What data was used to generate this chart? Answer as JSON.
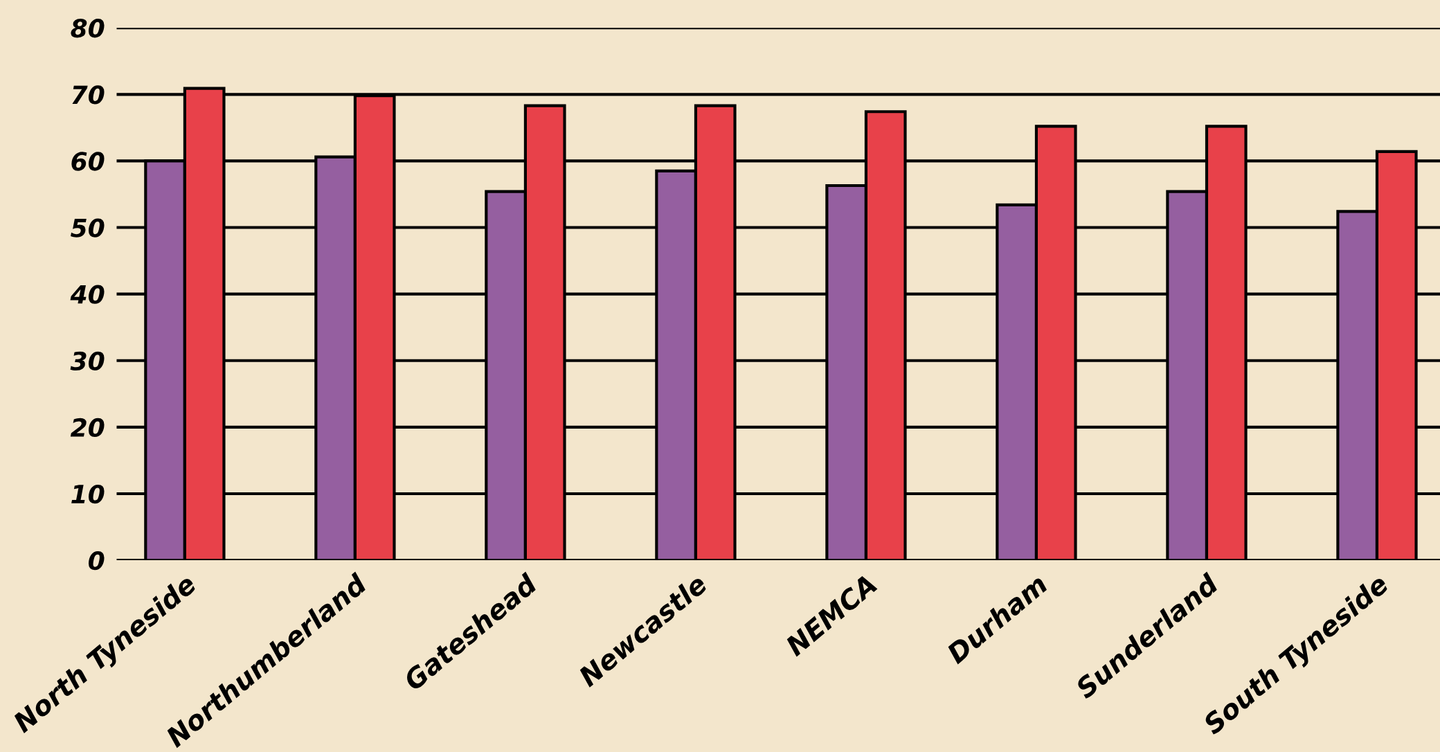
{
  "chart_data": {
    "type": "bar",
    "categories": [
      "North Tyneside",
      "Northumberland",
      "Gateshead",
      "Newcastle",
      "NEMCA",
      "Durham",
      "Sunderland",
      "South Tyneside"
    ],
    "series": [
      {
        "color": "#955fa0",
        "values": [
          60.0,
          60.6,
          55.4,
          58.5,
          56.3,
          53.4,
          55.4,
          52.4
        ]
      },
      {
        "color": "#e8414a",
        "values": [
          70.9,
          69.8,
          68.3,
          68.3,
          67.4,
          65.2,
          65.2,
          61.4
        ]
      }
    ],
    "ylim": [
      0,
      80
    ],
    "yticks": [
      0,
      10,
      20,
      30,
      40,
      50,
      60,
      70,
      80
    ],
    "grid": "y",
    "legend": false
  }
}
